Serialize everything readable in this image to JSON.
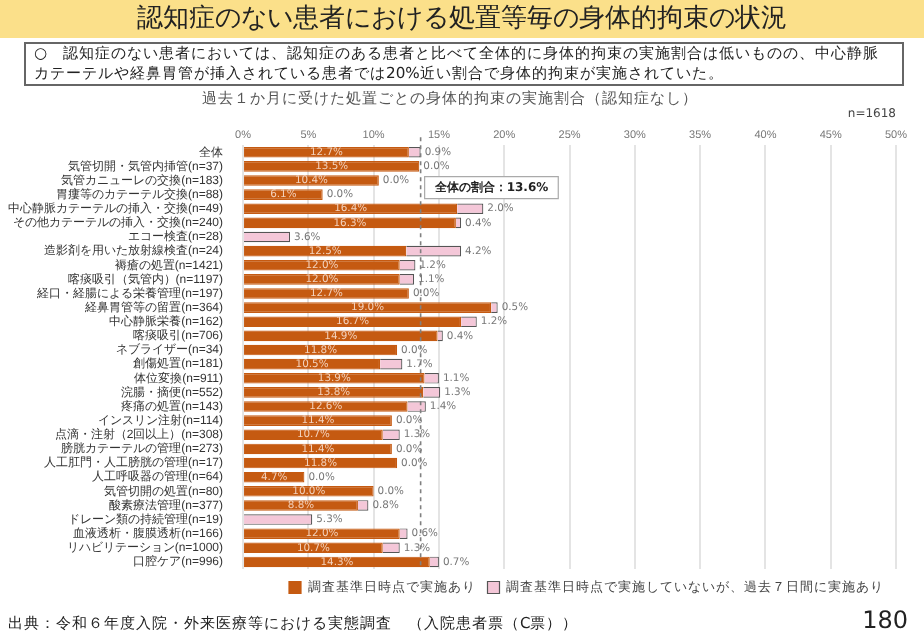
{
  "chart_data": {
    "type": "bar",
    "orientation": "horizontal",
    "stacked": true,
    "title": "認知症のない患者における処置等毎の身体的拘束の状況",
    "subtitle": "過去１か月に受けた処置ごとの身体的拘束の実施割合（認知症なし）",
    "annotations": [
      "○　認知症のない患者においては、認知症のある患者と比べて全体的に身体的拘束の実施割合は低いものの、中心静脈カテーテルや経鼻胃管が挿入されている患者では20%近い割合で身体的拘束が実施されていた。",
      "n=1618",
      "出典：令和６年度入院・外来医療等における実態調査　（入院患者票（C票））",
      "180"
    ],
    "categories": [
      "全体",
      "気管切開・気管内挿管(n=37)",
      "気管カニューレの交換(n=183)",
      "胃瘻等のカテーテル交換(n=88)",
      "中心静脈カテーテルの挿入・交換(n=49)",
      "その他カテーテルの挿入・交換(n=240)",
      "エコー検査(n=28)",
      "造影剤を用いた放射線検査(n=24)",
      "褥瘡の処置(n=1421)",
      "喀痰吸引（気管内）(n=1197)",
      "経口・経腸による栄養管理(n=197)",
      "経鼻胃管等の留置(n=364)",
      "中心静脈栄養(n=162)",
      "喀痰吸引(n=706)",
      "ネブライザー(n=34)",
      "創傷処置(n=181)",
      "体位変換(n=911)",
      "浣腸・摘便(n=552)",
      "疼痛の処置(n=143)",
      "インスリン注射(n=114)",
      "点滴・注射（2回以上）(n=308)",
      "膀胱カテーテルの管理(n=273)",
      "人工肛門・人工膀胱の管理(n=17)",
      "人工呼吸器の管理(n=64)",
      "気管切開の処置(n=80)",
      "酸素療法管理(n=377)",
      "ドレーン類の持続管理(n=19)",
      "血液透析・腹膜透析(n=166)",
      "リハビリテーション(n=1000)",
      "口腔ケア(n=996)"
    ],
    "series": [
      {
        "name": "調査基準日時点で実施あり",
        "color": "#c55a11",
        "values": [
          12.7,
          13.5,
          10.4,
          6.1,
          16.4,
          16.3,
          0,
          12.5,
          12.0,
          12.0,
          12.7,
          19.0,
          16.7,
          14.9,
          11.8,
          10.5,
          13.9,
          13.8,
          12.6,
          11.4,
          10.7,
          11.4,
          11.8,
          4.7,
          10.0,
          8.8,
          0,
          12.0,
          10.7,
          14.3
        ],
        "value_labels": [
          "12.7%",
          "13.5%",
          "10.4%",
          "6.1%",
          "16.4%",
          "16.3%",
          null,
          "12.5%",
          "12.0%",
          "12.0%",
          "12.7%",
          "19.0%",
          "16.7%",
          "14.9%",
          "11.8%",
          "10.5%",
          "13.9%",
          "13.8%",
          "12.6%",
          "11.4%",
          "10.7%",
          "11.4%",
          "11.8%",
          "4.7%",
          "10.0%",
          "8.8%",
          null,
          "12.0%",
          "10.7%",
          "14.3%"
        ]
      },
      {
        "name": "調査基準日時点で実施していないが、過去７日間に実施あり",
        "color": "#f4c7d8",
        "values": [
          0.9,
          0,
          0,
          0,
          2.0,
          0.4,
          3.6,
          4.2,
          1.2,
          1.1,
          0,
          0.5,
          1.2,
          0.4,
          0,
          1.7,
          1.1,
          1.3,
          1.4,
          0,
          1.3,
          0,
          0,
          0,
          0,
          0.8,
          5.3,
          0.6,
          1.3,
          0.7
        ],
        "value_labels": [
          "0.9%",
          "0.0%",
          "0.0%",
          "0.0%",
          "2.0%",
          "0.4%",
          "3.6%",
          "4.2%",
          "1.2%",
          "1.1%",
          "0.0%",
          "0.5%",
          "1.2%",
          "0.4%",
          "0.0%",
          "1.7%",
          "1.1%",
          "1.3%",
          "1.4%",
          "0.0%",
          "1.3%",
          "0.0%",
          "0.0%",
          "0.0%",
          "0.0%",
          "0.8%",
          "5.3%",
          "0.6%",
          "1.3%",
          "0.7%"
        ]
      }
    ],
    "xlim": [
      0,
      50
    ],
    "xticks": [
      {
        "value": 0,
        "label": "0%"
      },
      {
        "value": 5,
        "label": "5%"
      },
      {
        "value": 10,
        "label": "10%"
      },
      {
        "value": 15,
        "label": "15%"
      },
      {
        "value": 20,
        "label": "20%"
      },
      {
        "value": 25,
        "label": "25%"
      },
      {
        "value": 30,
        "label": "30%"
      },
      {
        "value": 35,
        "label": "35%"
      },
      {
        "value": 40,
        "label": "40%"
      },
      {
        "value": 45,
        "label": "45%"
      },
      {
        "value": 50,
        "label": "50%"
      }
    ],
    "ref_lines": [
      {
        "axis": "x",
        "value": 13.6,
        "label": "全体の割合：13.6%",
        "color": "#808080",
        "line_style": "dashed"
      }
    ],
    "grid": "x",
    "legend": "bottom"
  }
}
